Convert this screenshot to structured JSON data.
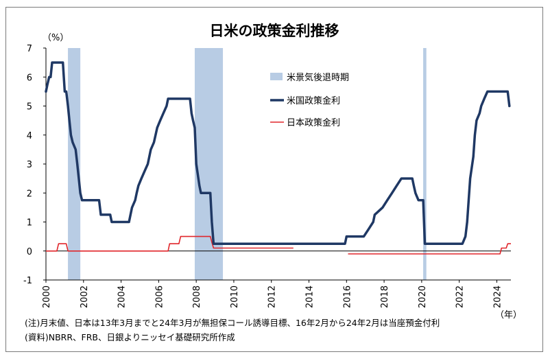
{
  "chart_data": {
    "type": "line",
    "title": "日米の政策金利推移",
    "y_unit": "（%）",
    "x_unit": "（年）",
    "xlim": [
      2000,
      2024.75
    ],
    "ylim": [
      -1,
      7
    ],
    "y_ticks": [
      -1,
      0,
      1,
      2,
      3,
      4,
      5,
      6,
      7
    ],
    "x_ticks": [
      2000,
      2002,
      2004,
      2006,
      2008,
      2010,
      2012,
      2014,
      2016,
      2018,
      2020,
      2022,
      2024
    ],
    "legend_position": "upper-right-center",
    "recessions": {
      "name": "米景気後退時期",
      "color": "#b8cce4",
      "periods": [
        [
          2001.17,
          2001.83
        ],
        [
          2007.92,
          2009.42
        ],
        [
          2020.08,
          2020.25
        ]
      ]
    },
    "series": [
      {
        "name": "米国政策金利",
        "color": "#1f3864",
        "points": [
          [
            2000.0,
            5.5
          ],
          [
            2000.08,
            5.75
          ],
          [
            2000.17,
            6.0
          ],
          [
            2000.25,
            6.0
          ],
          [
            2000.33,
            6.5
          ],
          [
            2000.9,
            6.5
          ],
          [
            2001.0,
            5.5
          ],
          [
            2001.08,
            5.5
          ],
          [
            2001.17,
            5.0
          ],
          [
            2001.25,
            4.5
          ],
          [
            2001.33,
            4.0
          ],
          [
            2001.42,
            3.75
          ],
          [
            2001.58,
            3.5
          ],
          [
            2001.67,
            3.0
          ],
          [
            2001.75,
            2.5
          ],
          [
            2001.83,
            2.0
          ],
          [
            2001.92,
            1.75
          ],
          [
            2002.83,
            1.75
          ],
          [
            2002.92,
            1.25
          ],
          [
            2003.42,
            1.25
          ],
          [
            2003.5,
            1.0
          ],
          [
            2004.42,
            1.0
          ],
          [
            2004.5,
            1.25
          ],
          [
            2004.58,
            1.5
          ],
          [
            2004.75,
            1.75
          ],
          [
            2004.83,
            2.0
          ],
          [
            2004.92,
            2.25
          ],
          [
            2005.08,
            2.5
          ],
          [
            2005.25,
            2.75
          ],
          [
            2005.42,
            3.0
          ],
          [
            2005.58,
            3.5
          ],
          [
            2005.75,
            3.75
          ],
          [
            2005.92,
            4.25
          ],
          [
            2006.08,
            4.5
          ],
          [
            2006.25,
            4.75
          ],
          [
            2006.42,
            5.0
          ],
          [
            2006.5,
            5.25
          ],
          [
            2007.67,
            5.25
          ],
          [
            2007.75,
            4.75
          ],
          [
            2007.83,
            4.5
          ],
          [
            2007.92,
            4.25
          ],
          [
            2008.0,
            3.0
          ],
          [
            2008.17,
            2.25
          ],
          [
            2008.25,
            2.0
          ],
          [
            2008.75,
            2.0
          ],
          [
            2008.83,
            1.0
          ],
          [
            2008.92,
            0.25
          ],
          [
            2015.92,
            0.25
          ],
          [
            2016.0,
            0.5
          ],
          [
            2016.92,
            0.5
          ],
          [
            2017.17,
            0.75
          ],
          [
            2017.42,
            1.0
          ],
          [
            2017.5,
            1.25
          ],
          [
            2017.92,
            1.5
          ],
          [
            2018.17,
            1.75
          ],
          [
            2018.42,
            2.0
          ],
          [
            2018.67,
            2.25
          ],
          [
            2018.92,
            2.5
          ],
          [
            2019.5,
            2.5
          ],
          [
            2019.58,
            2.25
          ],
          [
            2019.67,
            2.0
          ],
          [
            2019.83,
            1.75
          ],
          [
            2020.08,
            1.75
          ],
          [
            2020.17,
            0.25
          ],
          [
            2022.17,
            0.25
          ],
          [
            2022.33,
            0.5
          ],
          [
            2022.42,
            1.0
          ],
          [
            2022.5,
            1.75
          ],
          [
            2022.58,
            2.5
          ],
          [
            2022.75,
            3.25
          ],
          [
            2022.83,
            4.0
          ],
          [
            2022.92,
            4.5
          ],
          [
            2023.08,
            4.75
          ],
          [
            2023.17,
            5.0
          ],
          [
            2023.33,
            5.25
          ],
          [
            2023.5,
            5.5
          ],
          [
            2024.58,
            5.5
          ],
          [
            2024.67,
            5.0
          ]
        ]
      },
      {
        "name": "日本政策金利",
        "color": "#e0262b",
        "segments": [
          [
            [
              2000.0,
              0.0
            ],
            [
              2000.58,
              0.0
            ],
            [
              2000.67,
              0.25
            ],
            [
              2001.08,
              0.25
            ],
            [
              2001.17,
              0.0
            ],
            [
              2006.5,
              0.0
            ],
            [
              2006.58,
              0.25
            ],
            [
              2007.08,
              0.25
            ],
            [
              2007.17,
              0.5
            ],
            [
              2008.75,
              0.5
            ],
            [
              2008.83,
              0.3
            ],
            [
              2008.92,
              0.1
            ],
            [
              2013.17,
              0.1
            ]
          ],
          [
            [
              2016.08,
              -0.1
            ],
            [
              2024.17,
              -0.1
            ],
            [
              2024.25,
              0.1
            ],
            [
              2024.5,
              0.1
            ],
            [
              2024.58,
              0.25
            ],
            [
              2024.75,
              0.25
            ]
          ]
        ]
      }
    ],
    "notes": [
      "(注)月末値、日本は13年3月までと24年3月が無担保コール誘導目標、16年2月から24年2月は当座預金付利",
      "(資料)NBRR、FRB、日銀よりニッセイ基礎研究所作成"
    ]
  }
}
